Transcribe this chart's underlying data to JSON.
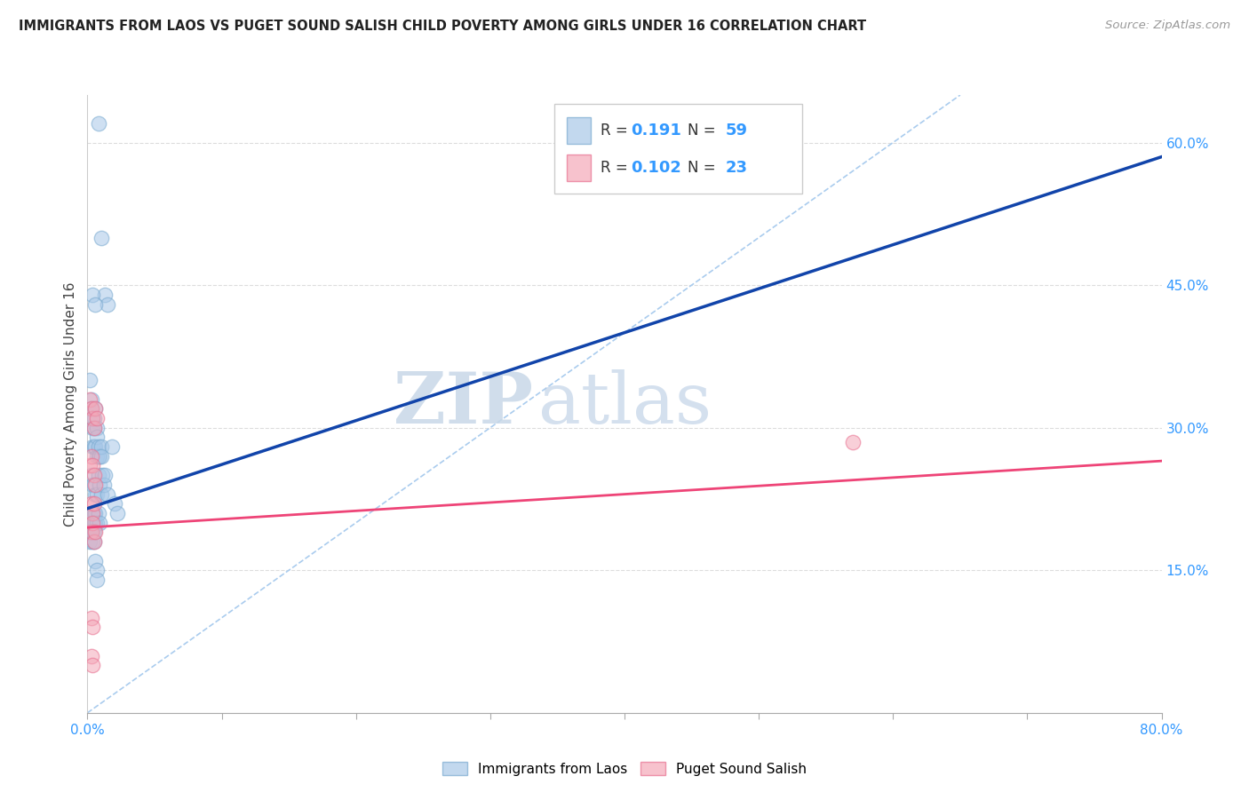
{
  "title": "IMMIGRANTS FROM LAOS VS PUGET SOUND SALISH CHILD POVERTY AMONG GIRLS UNDER 16 CORRELATION CHART",
  "source": "Source: ZipAtlas.com",
  "ylabel": "Child Poverty Among Girls Under 16",
  "legend_label1": "Immigrants from Laos",
  "legend_label2": "Puget Sound Salish",
  "R1": "0.191",
  "N1": "59",
  "R2": "0.102",
  "N2": "23",
  "color1": "#A8C8E8",
  "color2": "#F4A8B8",
  "color1_edge": "#7AAAD0",
  "color2_edge": "#E87090",
  "line_color1": "#1144AA",
  "line_color2": "#EE4477",
  "diag_color": "#AACCEE",
  "tick_color_right": "#3399FF",
  "background": "#FFFFFF",
  "watermark_zip": "ZIP",
  "watermark_atlas": "atlas",
  "xlim": [
    0.0,
    0.8
  ],
  "ylim": [
    0.0,
    0.65
  ],
  "ytick_vals": [
    0.15,
    0.3,
    0.45,
    0.6
  ],
  "ytick_labels": [
    "15.0%",
    "30.0%",
    "45.0%",
    "60.0%"
  ],
  "xtick_vals": [
    0.0,
    0.1,
    0.2,
    0.3,
    0.4,
    0.5,
    0.6,
    0.7,
    0.8
  ],
  "blue_scatter_x": [
    0.008,
    0.01,
    0.013,
    0.015,
    0.004,
    0.006,
    0.002,
    0.003,
    0.003,
    0.004,
    0.004,
    0.005,
    0.005,
    0.006,
    0.007,
    0.004,
    0.005,
    0.006,
    0.007,
    0.007,
    0.008,
    0.008,
    0.009,
    0.01,
    0.01,
    0.003,
    0.004,
    0.005,
    0.006,
    0.007,
    0.008,
    0.009,
    0.01,
    0.011,
    0.012,
    0.003,
    0.004,
    0.005,
    0.005,
    0.006,
    0.006,
    0.007,
    0.008,
    0.009,
    0.002,
    0.002,
    0.003,
    0.004,
    0.004,
    0.005,
    0.005,
    0.006,
    0.007,
    0.007,
    0.013,
    0.015,
    0.018,
    0.02,
    0.022
  ],
  "blue_scatter_y": [
    0.62,
    0.5,
    0.44,
    0.43,
    0.44,
    0.43,
    0.35,
    0.33,
    0.32,
    0.31,
    0.3,
    0.3,
    0.31,
    0.32,
    0.3,
    0.28,
    0.28,
    0.28,
    0.27,
    0.29,
    0.28,
    0.27,
    0.27,
    0.28,
    0.27,
    0.25,
    0.24,
    0.24,
    0.23,
    0.23,
    0.25,
    0.24,
    0.23,
    0.25,
    0.24,
    0.21,
    0.21,
    0.21,
    0.2,
    0.21,
    0.2,
    0.2,
    0.21,
    0.2,
    0.19,
    0.18,
    0.19,
    0.19,
    0.18,
    0.19,
    0.18,
    0.16,
    0.15,
    0.14,
    0.25,
    0.23,
    0.28,
    0.22,
    0.21
  ],
  "pink_scatter_x": [
    0.002,
    0.003,
    0.004,
    0.005,
    0.006,
    0.007,
    0.002,
    0.003,
    0.004,
    0.005,
    0.003,
    0.004,
    0.005,
    0.006,
    0.003,
    0.004,
    0.005,
    0.006,
    0.003,
    0.004,
    0.003,
    0.004,
    0.57
  ],
  "pink_scatter_y": [
    0.33,
    0.32,
    0.31,
    0.3,
    0.32,
    0.31,
    0.26,
    0.27,
    0.26,
    0.25,
    0.22,
    0.21,
    0.22,
    0.24,
    0.19,
    0.2,
    0.18,
    0.19,
    0.1,
    0.09,
    0.06,
    0.05,
    0.285
  ],
  "blue_line_x": [
    0.0,
    0.8
  ],
  "blue_line_y": [
    0.215,
    0.585
  ],
  "pink_line_x": [
    0.0,
    0.8
  ],
  "pink_line_y": [
    0.195,
    0.265
  ],
  "diag_line_x": [
    0.0,
    0.65
  ],
  "diag_line_y": [
    0.0,
    0.65
  ]
}
